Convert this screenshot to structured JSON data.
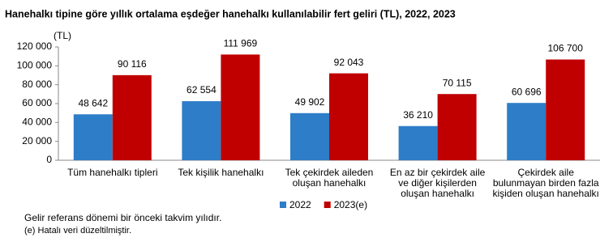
{
  "chart_data": {
    "type": "bar",
    "title": "Hanehalkı tipine göre yıllık ortalama eşdeğer hanehalkı kullanılabilir fert geliri (TL), 2022, 2023",
    "y_unit": "(TL)",
    "categories": [
      [
        "Tüm hanehalkı tipleri"
      ],
      [
        "Tek kişilik hanehalkı"
      ],
      [
        "Tek çekirdek aileden",
        "oluşan hanehalkı"
      ],
      [
        "En az bir çekirdek aile",
        "ve diğer kişilerden",
        "oluşan hanehalkı"
      ],
      [
        "Çekirdek aile",
        "bulunmayan birden fazla",
        "kişiden oluşan hanehalkı"
      ]
    ],
    "series": [
      {
        "name": "2022",
        "color": "#2e7dc8",
        "values": [
          48642,
          62554,
          49902,
          36210,
          60696
        ],
        "value_labels": [
          "48 642",
          "62 554",
          "49 902",
          "36 210",
          "60 696"
        ]
      },
      {
        "name": "2023(e)",
        "color": "#c00000",
        "values": [
          90116,
          111969,
          92043,
          70115,
          106700
        ],
        "value_labels": [
          "90 116",
          "111 969",
          "92 043",
          "70 115",
          "106 700"
        ]
      }
    ],
    "ylim": [
      0,
      120000
    ],
    "yticks": [
      0,
      {
        "value": 20000,
        "label": "20 000"
      },
      {
        "value": 40000,
        "label": "40 000"
      },
      {
        "value": 60000,
        "label": "60 000"
      },
      {
        "value": 80000,
        "label": "80 000"
      },
      {
        "value": 100000,
        "label": "100 000"
      },
      {
        "value": 120000,
        "label": "120 000"
      }
    ],
    "grid": false,
    "legend": "bottom",
    "notes": [
      "Gelir referans dönemi bir önceki takvim yılıdır.",
      "(e) Hatalı veri düzeltilmiştir."
    ]
  }
}
